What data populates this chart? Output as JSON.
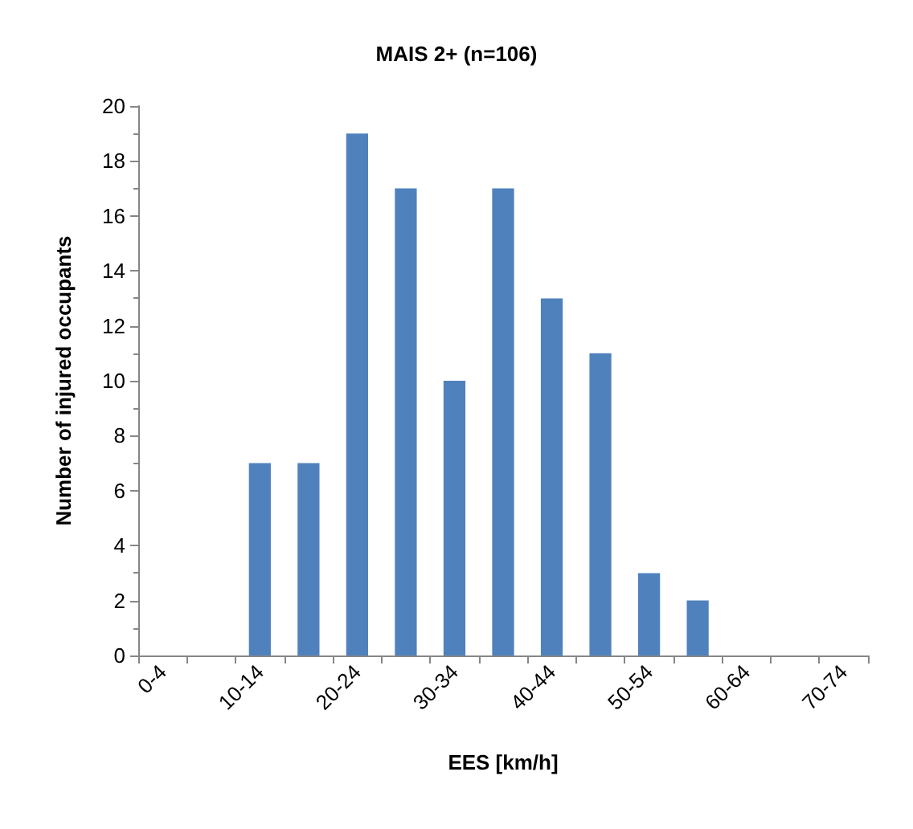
{
  "chart_data": {
    "type": "bar",
    "title": "MAIS 2+ (n=106)",
    "xlabel": "EES [km/h]",
    "ylabel": "Number of injured occupants",
    "categories": [
      "0-4",
      null,
      "10-14",
      null,
      "20-24",
      null,
      "30-34",
      null,
      "40-44",
      null,
      "50-54",
      null,
      "60-64",
      null,
      "70-74"
    ],
    "values": [
      0,
      0,
      7,
      7,
      19,
      17,
      10,
      17,
      13,
      11,
      3,
      2,
      0,
      0,
      0
    ],
    "color": "#4f81bd",
    "ylim": [
      0,
      20
    ],
    "yticks": [
      0,
      2,
      4,
      6,
      8,
      10,
      12,
      14,
      16,
      18,
      20
    ],
    "grid": false
  }
}
